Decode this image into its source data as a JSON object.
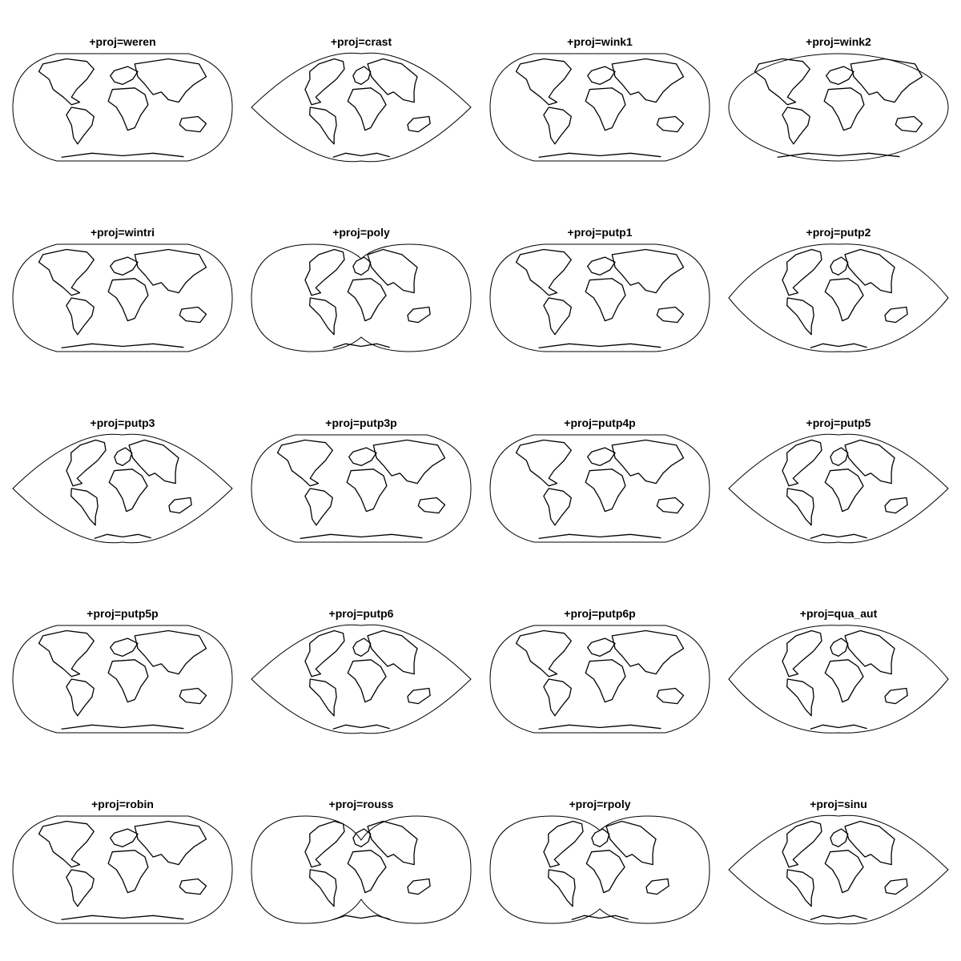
{
  "figure": {
    "panels": [
      {
        "title": "+proj=weren",
        "shape": "lens-flat"
      },
      {
        "title": "+proj=crast",
        "shape": "lens-point"
      },
      {
        "title": "+proj=wink1",
        "shape": "lens-flat"
      },
      {
        "title": "+proj=wink2",
        "shape": "ellipse"
      },
      {
        "title": "+proj=wintri",
        "shape": "lens-flat"
      },
      {
        "title": "+proj=poly",
        "shape": "double-lobe"
      },
      {
        "title": "+proj=putp1",
        "shape": "ellipse-flat"
      },
      {
        "title": "+proj=putp2",
        "shape": "ellipse-point"
      },
      {
        "title": "+proj=putp3",
        "shape": "lens-point"
      },
      {
        "title": "+proj=putp3p",
        "shape": "lens-flat"
      },
      {
        "title": "+proj=putp4p",
        "shape": "lens-flat"
      },
      {
        "title": "+proj=putp5",
        "shape": "lens-point"
      },
      {
        "title": "+proj=putp5p",
        "shape": "lens-flat"
      },
      {
        "title": "+proj=putp6",
        "shape": "lens-point"
      },
      {
        "title": "+proj=putp6p",
        "shape": "lens-flat"
      },
      {
        "title": "+proj=qua_aut",
        "shape": "ellipse-point"
      },
      {
        "title": "+proj=robin",
        "shape": "lens-flat"
      },
      {
        "title": "+proj=rouss",
        "shape": "double-lobe-pinch"
      },
      {
        "title": "+proj=rpoly",
        "shape": "double-lobe"
      },
      {
        "title": "+proj=sinu",
        "shape": "lens-point"
      }
    ]
  }
}
